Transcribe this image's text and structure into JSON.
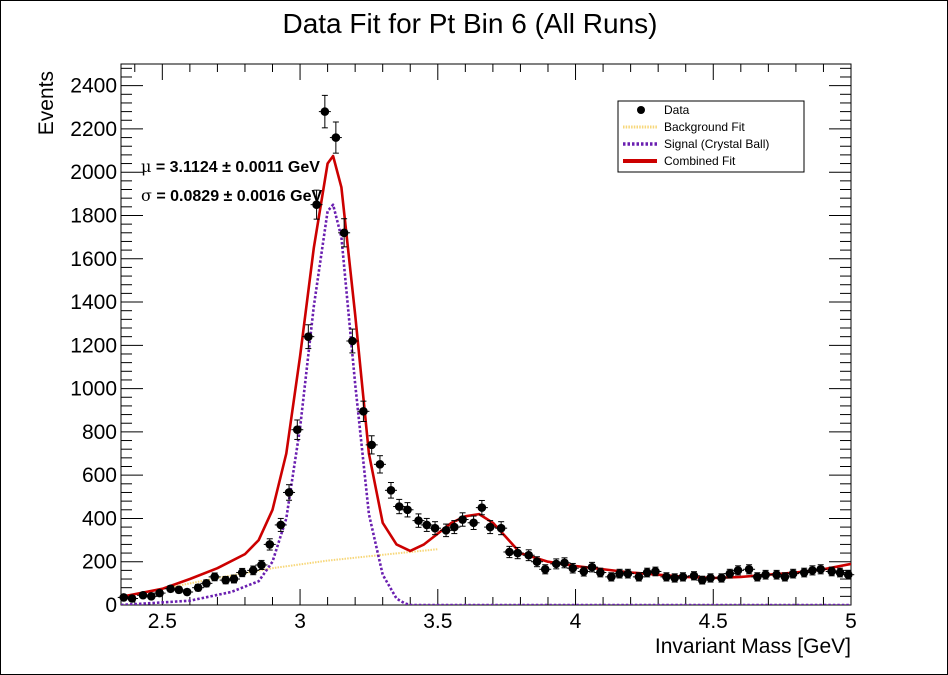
{
  "chart_data": {
    "type": "scatter",
    "title": "Data Fit for Pt Bin 6 (All Runs)",
    "xlabel": "Invariant Mass [GeV]",
    "ylabel": "Events",
    "xlim": [
      2.35,
      5.0
    ],
    "ylim": [
      0,
      2500
    ],
    "x_ticks": [
      2.5,
      3,
      3.5,
      4,
      4.5,
      5
    ],
    "x_tick_labels": [
      "2.5",
      "3",
      "3.5",
      "4",
      "4.5",
      "5"
    ],
    "y_ticks": [
      0,
      200,
      400,
      600,
      800,
      1000,
      1200,
      1400,
      1600,
      1800,
      2000,
      2200,
      2400
    ],
    "y_tick_labels": [
      "0",
      "200",
      "400",
      "600",
      "800",
      "1000",
      "1200",
      "1400",
      "1600",
      "1800",
      "2000",
      "2200",
      "2400"
    ],
    "grid": false,
    "legend_position": "top-right",
    "annotations": [
      {
        "symbol": "μ",
        "text": " = 3.1124 ± 0.0011 GeV"
      },
      {
        "symbol": "σ",
        "text": " = 0.0829 ± 0.0016 GeV"
      }
    ],
    "series": [
      {
        "name": "Data",
        "kind": "points",
        "color": "#000000",
        "x": [
          2.36,
          2.39,
          2.43,
          2.46,
          2.49,
          2.53,
          2.56,
          2.59,
          2.63,
          2.66,
          2.69,
          2.73,
          2.76,
          2.79,
          2.83,
          2.86,
          2.89,
          2.93,
          2.96,
          2.99,
          3.03,
          3.06,
          3.09,
          3.13,
          3.16,
          3.19,
          3.23,
          3.26,
          3.29,
          3.33,
          3.36,
          3.39,
          3.43,
          3.46,
          3.49,
          3.53,
          3.56,
          3.59,
          3.63,
          3.66,
          3.69,
          3.73,
          3.76,
          3.79,
          3.83,
          3.86,
          3.89,
          3.93,
          3.96,
          3.99,
          4.03,
          4.06,
          4.09,
          4.13,
          4.16,
          4.19,
          4.23,
          4.26,
          4.29,
          4.33,
          4.36,
          4.39,
          4.43,
          4.46,
          4.49,
          4.53,
          4.56,
          4.59,
          4.63,
          4.66,
          4.69,
          4.73,
          4.76,
          4.79,
          4.83,
          4.86,
          4.89,
          4.93,
          4.96,
          4.99
        ],
        "y": [
          35,
          30,
          45,
          40,
          55,
          75,
          70,
          60,
          80,
          100,
          130,
          115,
          120,
          150,
          160,
          185,
          280,
          370,
          520,
          810,
          1240,
          1850,
          2280,
          2160,
          1720,
          1220,
          895,
          740,
          650,
          530,
          455,
          440,
          390,
          370,
          355,
          345,
          360,
          395,
          380,
          450,
          360,
          355,
          245,
          240,
          230,
          200,
          165,
          190,
          195,
          170,
          155,
          175,
          150,
          130,
          145,
          145,
          130,
          150,
          155,
          130,
          125,
          130,
          135,
          115,
          125,
          125,
          145,
          160,
          165,
          130,
          140,
          140,
          130,
          145,
          150,
          160,
          165,
          155,
          150,
          140
        ],
        "yerr": [
          10,
          10,
          11,
          11,
          12,
          14,
          14,
          13,
          15,
          16,
          18,
          17,
          18,
          19,
          20,
          21,
          26,
          30,
          36,
          45,
          55,
          67,
          75,
          72,
          65,
          55,
          47,
          42,
          40,
          36,
          33,
          33,
          31,
          30,
          30,
          29,
          30,
          31,
          31,
          33,
          30,
          30,
          26,
          26,
          25,
          23,
          21,
          23,
          23,
          22,
          21,
          22,
          20,
          19,
          20,
          20,
          19,
          20,
          20,
          19,
          19,
          19,
          19,
          18,
          19,
          19,
          20,
          21,
          21,
          19,
          20,
          20,
          19,
          20,
          20,
          21,
          21,
          20,
          20,
          20
        ]
      },
      {
        "name": "Background Fit",
        "kind": "line",
        "color": "#f7d77a",
        "x": [
          2.35,
          2.5,
          2.7,
          2.9,
          3.1,
          3.3,
          3.5
        ],
        "y": [
          38,
          75,
          125,
          170,
          205,
          232,
          258
        ]
      },
      {
        "name": "Signal (Crystal Ball)",
        "kind": "line",
        "color": "#6a1fb0",
        "x": [
          2.35,
          2.6,
          2.75,
          2.85,
          2.9,
          2.95,
          3.0,
          3.05,
          3.1,
          3.12,
          3.15,
          3.2,
          3.25,
          3.3,
          3.35,
          3.38,
          3.4,
          3.45,
          3.5,
          4.0,
          4.5,
          5.0
        ],
        "y": [
          0,
          20,
          60,
          110,
          200,
          400,
          820,
          1380,
          1820,
          1850,
          1700,
          1020,
          420,
          140,
          30,
          8,
          0,
          0,
          0,
          0,
          0,
          0
        ]
      },
      {
        "name": "Combined Fit",
        "kind": "line",
        "color": "#cc0000",
        "x": [
          2.35,
          2.5,
          2.6,
          2.7,
          2.8,
          2.85,
          2.9,
          2.95,
          3.0,
          3.05,
          3.1,
          3.12,
          3.15,
          3.2,
          3.25,
          3.3,
          3.35,
          3.4,
          3.45,
          3.5,
          3.55,
          3.6,
          3.65,
          3.7,
          3.75,
          3.8,
          3.9,
          4.0,
          4.2,
          4.4,
          4.5,
          4.6,
          4.8,
          4.9,
          5.0
        ],
        "y": [
          38,
          75,
          120,
          170,
          235,
          300,
          440,
          700,
          1150,
          1650,
          2040,
          2075,
          1930,
          1340,
          700,
          380,
          280,
          250,
          280,
          330,
          380,
          410,
          420,
          380,
          310,
          240,
          200,
          180,
          150,
          130,
          125,
          130,
          150,
          165,
          190
        ]
      }
    ]
  }
}
